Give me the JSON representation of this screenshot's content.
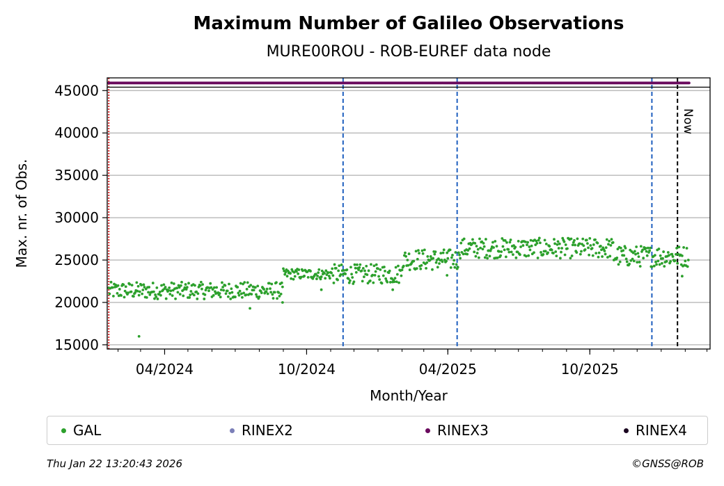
{
  "chart_data": {
    "type": "scatter",
    "title": "Maximum Number of Galileo Observations",
    "subtitle": "MURE00ROU - ROB-EUREF data node",
    "xlabel": "Month/Year",
    "ylabel": "Max. nr. of Obs.",
    "xlim": [
      "2024-01-18",
      "2026-03-05"
    ],
    "ylim": [
      14500,
      46500
    ],
    "y_ticks": [
      15000,
      20000,
      25000,
      30000,
      35000,
      40000,
      45000
    ],
    "x_ticks": [
      "04/2024",
      "10/2024",
      "04/2025",
      "10/2025"
    ],
    "grid": "horizontal",
    "legend_position": "bottom",
    "series": [
      {
        "name": "GAL",
        "color": "#2ca02c",
        "segments": [
          {
            "start": "2024-01-20",
            "end": "2024-08-31",
            "low": 20400,
            "high": 22400
          },
          {
            "start": "2024-09-01",
            "end": "2024-10-31",
            "low": 22700,
            "high": 24000
          },
          {
            "start": "2024-11-01",
            "end": "2025-01-31",
            "low": 22200,
            "high": 24500
          },
          {
            "start": "2025-02-01",
            "end": "2025-04-15",
            "low": 23800,
            "high": 26300
          },
          {
            "start": "2025-04-16",
            "end": "2025-10-31",
            "low": 25200,
            "high": 27600
          },
          {
            "start": "2025-11-01",
            "end": "2026-02-05",
            "low": 24200,
            "high": 26700
          }
        ],
        "outliers": [
          {
            "x": "2024-02-28",
            "y": 16000
          },
          {
            "x": "2024-07-20",
            "y": 19300
          },
          {
            "x": "2024-08-31",
            "y": 20000
          },
          {
            "x": "2024-10-20",
            "y": 21500
          },
          {
            "x": "2025-01-20",
            "y": 21500
          },
          {
            "x": "2025-03-31",
            "y": 23200
          },
          {
            "x": "2026-01-28",
            "y": 23100
          }
        ]
      },
      {
        "name": "RINEX2",
        "color": "#7b7fb8"
      },
      {
        "name": "RINEX3",
        "color": "#6a0a5e",
        "start": "2024-01-20",
        "end": "2026-02-06",
        "value": 45900
      },
      {
        "name": "RINEX4",
        "color": "#1a0520"
      }
    ],
    "vertical_markers": [
      {
        "x": "2024-01-20",
        "color": "#d62728",
        "style": "dotted"
      },
      {
        "x": "2024-11-17",
        "color": "#1f5fbf",
        "style": "dashed"
      },
      {
        "x": "2025-04-13",
        "color": "#1f5fbf",
        "style": "dashed"
      },
      {
        "x": "2025-12-20",
        "color": "#1f5fbf",
        "style": "dashed"
      },
      {
        "x": "2026-01-22",
        "color": "#000000",
        "style": "dashed",
        "label": "Now"
      }
    ],
    "horizontal_marker": {
      "y": 45400,
      "color": "#000000"
    }
  },
  "footer": {
    "timestamp": "Thu Jan 22 13:20:43 2026",
    "credit": "©GNSS@ROB"
  }
}
